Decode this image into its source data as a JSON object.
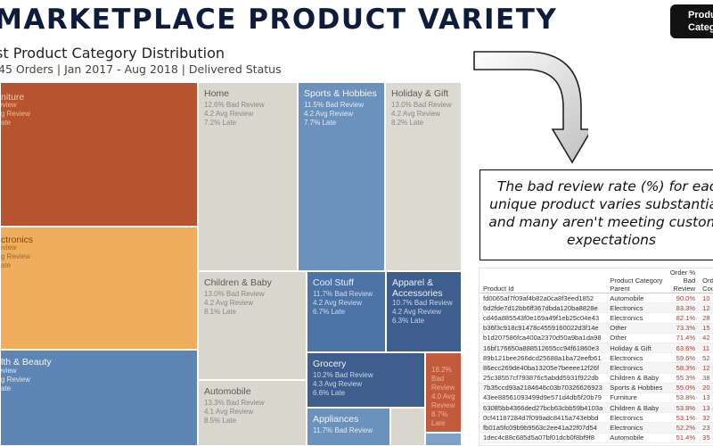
{
  "header": {
    "title": "MARKETPLACE PRODUCT VARIETY",
    "badge": [
      "Produc",
      "Categ"
    ]
  },
  "panel": {
    "title": "st Product Category Distribution",
    "subtitle": "45 Orders | Jan 2017 - Aug 2018 | Delivered Status"
  },
  "treemap": [
    {
      "name": "niture",
      "bad": "",
      "avg": "g Review",
      "late": "ate",
      "extra": "Bad Review"
    },
    {
      "name": "ctronics",
      "bad": "",
      "avg": "g Review",
      "late": "ate",
      "extra": "Bad Review"
    },
    {
      "name": "lth & Beauty",
      "bad": "",
      "avg": "g Review",
      "late": "ate",
      "extra": "Bad Review"
    },
    {
      "name": "Home",
      "bad": "12.6% Bad Review",
      "avg": "4.2 Avg Review",
      "late": "7.2% Late"
    },
    {
      "name": "Sports & Hobbies",
      "bad": "11.5% Bad Review",
      "avg": "4.2 Avg Review",
      "late": "7.7% Late"
    },
    {
      "name": "Holiday & Gift",
      "bad": "13.0% Bad Review",
      "avg": "4.2 Avg Review",
      "late": "8.2% Late"
    },
    {
      "name": "Children & Baby",
      "bad": "13.0% Bad Review",
      "avg": "4.2 Avg Review",
      "late": "8.1% Late"
    },
    {
      "name": "Cool Stuff",
      "bad": "11.7% Bad Review",
      "avg": "4.2 Avg Review",
      "late": "6.7% Late"
    },
    {
      "name": "Apparel & Accessories",
      "bad": "10.7% Bad Review",
      "avg": "4.2 Avg Review",
      "late": "6.3% Late"
    },
    {
      "name": "Grocery",
      "bad": "10.2% Bad Review",
      "avg": "4.3 Avg Review",
      "late": "6.6% Late"
    },
    {
      "name": "Automobile",
      "bad": "13.3% Bad Review",
      "avg": "4.1 Avg Review",
      "late": "8.5% Late"
    },
    {
      "name": "Appliances",
      "bad": "11.7% Bad Review",
      "avg": "",
      "late": ""
    },
    {
      "name": "18.2%",
      "bad": "Bad Review",
      "avg": "4.0 Avg Review",
      "late": "8.7% Late"
    }
  ],
  "callout": "The bad review rate (%) for each unique product varies substantially and many aren't meeting customer expectations",
  "table": {
    "headers": [
      "Product Id",
      "Product Category Parent",
      "Order % Bad Review",
      "Order Cou"
    ],
    "rows": [
      [
        "fd0065af7f09af4b82a0ca8f3eed1852",
        "Automobile",
        "90.0%",
        "10"
      ],
      [
        "6d2fde7d12bb6ff367dbda120ba8828e",
        "Electronics",
        "83.3%",
        "12"
      ],
      [
        "cd46a885543f0e169a49f1eb25c04e43",
        "Electronics",
        "82.1%",
        "28"
      ],
      [
        "b36f3c918c91478c4559160022d3f14e",
        "Other",
        "73.3%",
        "15"
      ],
      [
        "b1d207586fca400a2370d50a9ba1da98",
        "Other",
        "71.4%",
        "42"
      ],
      [
        "16bf176650a888512655cc94f61860e3",
        "Holiday & Gift",
        "63.6%",
        "11"
      ],
      [
        "89b121bee266dcd25688a1ba72eefb61",
        "Electronics",
        "59.6%",
        "52"
      ],
      [
        "86ecc269de40ba13205e7beeee12f26f",
        "Electronics",
        "58.3%",
        "12"
      ],
      [
        "25c38557cf793876c5abdd5931f922db",
        "Children & Baby",
        "55.3%",
        "38"
      ],
      [
        "7b35ccd93a2184646c03b70326626923",
        "Sports & Hobbies",
        "55.0%",
        "20"
      ],
      [
        "43ee88561093499d9e571d4db5f20b79",
        "Furniture",
        "53.8%",
        "13"
      ],
      [
        "63085bb4366ded27bcb63cbb59b4103a",
        "Children & Baby",
        "53.8%",
        "13"
      ],
      [
        "0cf41187284d7f099adc8415a743ebbd",
        "Electronics",
        "53.1%",
        "32"
      ],
      [
        "fb01a5fc09b9b9563c2ee41a22f07d54",
        "Electronics",
        "52.2%",
        "23"
      ],
      [
        "1dec4c88c685d5a07bf01dcb0f8bf9f8",
        "Automobile",
        "51.4%",
        "35"
      ]
    ]
  }
}
